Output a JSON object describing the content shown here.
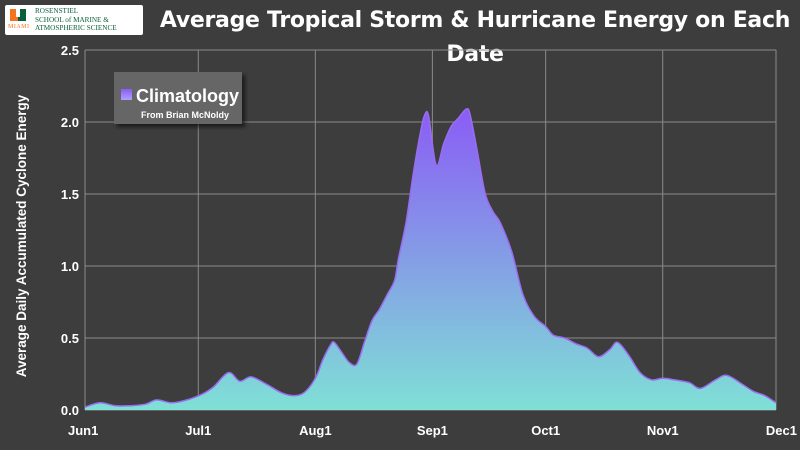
{
  "logo": {
    "line1": "ROSENSTIEL",
    "line2": "SCHOOL of MARINE &",
    "line3": "ATMOSPHERIC SCIENCE",
    "miami": "MIAMI",
    "icon": "university-u-logo-icon",
    "colors": {
      "orange": "#f47321",
      "green": "#0a5e3a"
    }
  },
  "chart_data": {
    "type": "area",
    "title": "Average Tropical Storm & Hurricane Energy on Each Date",
    "xlabel": "",
    "ylabel": "Average Daily Accumulated Cyclone Energy",
    "ylim": [
      0,
      2.5
    ],
    "yticks": [
      "0.0",
      "0.5",
      "1.0",
      "1.5",
      "2.0",
      "2.5"
    ],
    "xticks": [
      "Jun1",
      "Jul1",
      "Aug1",
      "Sep1",
      "Oct1",
      "Nov1",
      "Dec1"
    ],
    "grid": true,
    "legend": {
      "placement": "top-left",
      "label": "Climatology",
      "note": "From Brian McNoldy"
    },
    "colors": {
      "top": "#8a5cf5",
      "bottom": "#7fe0d6",
      "line": "#9b6cf0",
      "background": "#3d3d3d",
      "grid": "#8a8a8a"
    },
    "series": [
      {
        "name": "Climatology",
        "x": [
          "Jun 1",
          "Jun 5",
          "Jun 9",
          "Jun 13",
          "Jun 17",
          "Jun 20",
          "Jun 24",
          "Jun 28",
          "Jul 2",
          "Jul 5",
          "Jul 9",
          "Jul 12",
          "Jul 15",
          "Jul 19",
          "Jul 23",
          "Jul 26",
          "Jul 29",
          "Aug 1",
          "Aug 3",
          "Aug 5",
          "Aug 6",
          "Aug 8",
          "Aug 10",
          "Aug 12",
          "Aug 14",
          "Aug 16",
          "Aug 18",
          "Aug 20",
          "Aug 22",
          "Aug 23",
          "Aug 25",
          "Aug 27",
          "Aug 29",
          "Aug 30",
          "Aug 31",
          "Sep 2",
          "Sep 4",
          "Sep 6",
          "Sep 8",
          "Sep 10",
          "Sep 11",
          "Sep 13",
          "Sep 15",
          "Sep 17",
          "Sep 19",
          "Sep 22",
          "Sep 25",
          "Sep 28",
          "Oct 1",
          "Oct 3",
          "Oct 6",
          "Oct 9",
          "Oct 12",
          "Oct 15",
          "Oct 18",
          "Oct 20",
          "Oct 23",
          "Oct 26",
          "Oct 29",
          "Nov 1",
          "Nov 4",
          "Nov 8",
          "Nov 11",
          "Nov 15",
          "Nov 18",
          "Nov 22",
          "Nov 25",
          "Nov 28",
          "Dec 1"
        ],
        "values": [
          0.02,
          0.05,
          0.03,
          0.03,
          0.04,
          0.07,
          0.05,
          0.07,
          0.11,
          0.16,
          0.26,
          0.2,
          0.23,
          0.18,
          0.12,
          0.1,
          0.12,
          0.22,
          0.35,
          0.45,
          0.47,
          0.4,
          0.33,
          0.32,
          0.47,
          0.62,
          0.7,
          0.8,
          0.9,
          1.05,
          1.3,
          1.65,
          1.95,
          2.05,
          2.04,
          1.7,
          1.85,
          1.97,
          2.03,
          2.09,
          2.05,
          1.78,
          1.5,
          1.38,
          1.3,
          1.1,
          0.8,
          0.65,
          0.58,
          0.52,
          0.5,
          0.46,
          0.43,
          0.37,
          0.42,
          0.47,
          0.38,
          0.26,
          0.21,
          0.22,
          0.21,
          0.19,
          0.15,
          0.21,
          0.24,
          0.18,
          0.13,
          0.1,
          0.05
        ]
      }
    ]
  }
}
